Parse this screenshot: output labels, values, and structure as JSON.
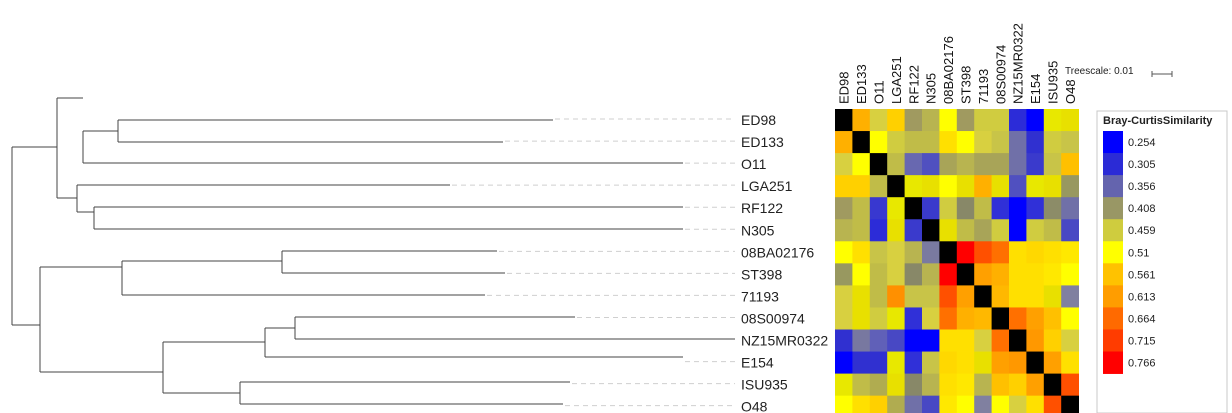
{
  "tree": {
    "taxa": [
      "ED98",
      "ED133",
      "O11",
      "LGA251",
      "RF122",
      "N305",
      "08BA02176",
      "ST398",
      "71193",
      "08S00974",
      "NZ15MR0322",
      "E154",
      "ISU935",
      "O48"
    ],
    "scale_label": "Treescale: 0.01"
  },
  "heatmap": {
    "columns": [
      "ED98",
      "ED133",
      "O11",
      "LGA251",
      "RF122",
      "N305",
      "08BA02176",
      "ST398",
      "71193",
      "08S00974",
      "NZ15MR0322",
      "E154",
      "ISU935",
      "O48"
    ],
    "rows": [
      "ED98",
      "ED133",
      "O11",
      "LGA251",
      "RF122",
      "N305",
      "08BA02176",
      "ST398",
      "71193",
      "08S00974",
      "NZ15MR0322",
      "E154",
      "ISU935",
      "O48"
    ],
    "cell_colors": [
      [
        "#000000",
        "#ffb000",
        "#d8d040",
        "#ffd000",
        "#a09a60",
        "#b8b450",
        "#ffff00",
        "#a09a60",
        "#d0cc40",
        "#d0cc40",
        "#2c2cd8",
        "#0000ff",
        "#e8e800",
        "#e8e000"
      ],
      [
        "#ffb000",
        "#000000",
        "#ffff00",
        "#d0cc40",
        "#c0bc48",
        "#c0bc48",
        "#ffe000",
        "#ffff00",
        "#d8d040",
        "#c8c448",
        "#7070a8",
        "#3030d0",
        "#d0cc40",
        "#c8c448"
      ],
      [
        "#d8d040",
        "#ffff00",
        "#000000",
        "#c0bc48",
        "#6868b0",
        "#5050c0",
        "#a8a458",
        "#b8b450",
        "#a8a458",
        "#a8a458",
        "#7070a8",
        "#3a3acc",
        "#c8c448",
        "#ffc000"
      ],
      [
        "#ffd000",
        "#ffd000",
        "#c0bc48",
        "#000000",
        "#e8e800",
        "#e8e000",
        "#ffff00",
        "#e8e000",
        "#ffb000",
        "#e8e000",
        "#5050c0",
        "#e8e800",
        "#e8e000",
        "#989860"
      ],
      [
        "#a09a60",
        "#c0bc48",
        "#3838d0",
        "#e8e800",
        "#000000",
        "#3a3acc",
        "#d0cc40",
        "#888868",
        "#c0bc48",
        "#3030d8",
        "#0000ff",
        "#3030d8",
        "#8c8c68",
        "#7070a8"
      ],
      [
        "#b8b450",
        "#c0bc48",
        "#2c2cd8",
        "#e8e000",
        "#3a3acc",
        "#000000",
        "#e8e000",
        "#c0bc48",
        "#a8a458",
        "#d0cc40",
        "#0000ff",
        "#d0cc40",
        "#c0bc48",
        "#4848c4"
      ],
      [
        "#ffff00",
        "#ffe000",
        "#c8c448",
        "#d8d040",
        "#b8b450",
        "#7a7aa0",
        "#000000",
        "#ff0000",
        "#ff5000",
        "#ff7000",
        "#ffe000",
        "#ffd800",
        "#ffe000",
        "#ffe800"
      ],
      [
        "#989860",
        "#ffff00",
        "#c0bc48",
        "#d8d040",
        "#888868",
        "#b8b450",
        "#ff0000",
        "#000000",
        "#ffa000",
        "#ffb000",
        "#ffe000",
        "#ffe000",
        "#ffe800",
        "#ffff00"
      ],
      [
        "#d8d040",
        "#e8e000",
        "#c0bc48",
        "#ff9000",
        "#c8c448",
        "#c8c448",
        "#ff5000",
        "#ffa000",
        "#000000",
        "#ffb800",
        "#ffe000",
        "#ffe000",
        "#e8e000",
        "#8080a0"
      ],
      [
        "#d8d040",
        "#e8e000",
        "#d0cc40",
        "#e8e800",
        "#3030d8",
        "#d8d040",
        "#ff7000",
        "#ffb000",
        "#ffb800",
        "#000000",
        "#ff7000",
        "#ffa000",
        "#ffc000",
        "#ffff00"
      ],
      [
        "#3030d0",
        "#7878a0",
        "#6060b8",
        "#4848c4",
        "#0000ff",
        "#0000ff",
        "#ffe000",
        "#ffe000",
        "#d8d040",
        "#ff7000",
        "#000000",
        "#ff9800",
        "#ffd000",
        "#d8d040"
      ],
      [
        "#0000ff",
        "#3030d0",
        "#3030d0",
        "#e8e800",
        "#3030d8",
        "#c8c448",
        "#ffd800",
        "#ffe000",
        "#e8e000",
        "#ffa000",
        "#ff9800",
        "#000000",
        "#ffa000",
        "#ffe000"
      ],
      [
        "#e8e800",
        "#c0bc48",
        "#b0ac50",
        "#e8e000",
        "#888868",
        "#b8b450",
        "#ffe000",
        "#ffe800",
        "#b8b450",
        "#ffc000",
        "#ffd000",
        "#ffa000",
        "#000000",
        "#ff5000"
      ],
      [
        "#ffff00",
        "#ffe000",
        "#ffd000",
        "#b0ac50",
        "#7070a8",
        "#4848c4",
        "#ffe800",
        "#ffff00",
        "#8080a0",
        "#ffff00",
        "#d8d040",
        "#ffe000",
        "#ff5000",
        "#000000"
      ]
    ]
  },
  "legend": {
    "title": "Bray-CurtisSimilarity",
    "entries": [
      {
        "value": "0.254",
        "color": "#0000ff"
      },
      {
        "value": "0.305",
        "color": "#2b2bd6"
      },
      {
        "value": "0.356",
        "color": "#6464ae"
      },
      {
        "value": "0.408",
        "color": "#999765"
      },
      {
        "value": "0.459",
        "color": "#cfcc3e"
      },
      {
        "value": "0.51",
        "color": "#ffff00"
      },
      {
        "value": "0.561",
        "color": "#ffc200"
      },
      {
        "value": "0.613",
        "color": "#ff9d00"
      },
      {
        "value": "0.664",
        "color": "#ff6a00"
      },
      {
        "value": "0.715",
        "color": "#ff3c00"
      },
      {
        "value": "0.766",
        "color": "#ff0000"
      }
    ]
  }
}
